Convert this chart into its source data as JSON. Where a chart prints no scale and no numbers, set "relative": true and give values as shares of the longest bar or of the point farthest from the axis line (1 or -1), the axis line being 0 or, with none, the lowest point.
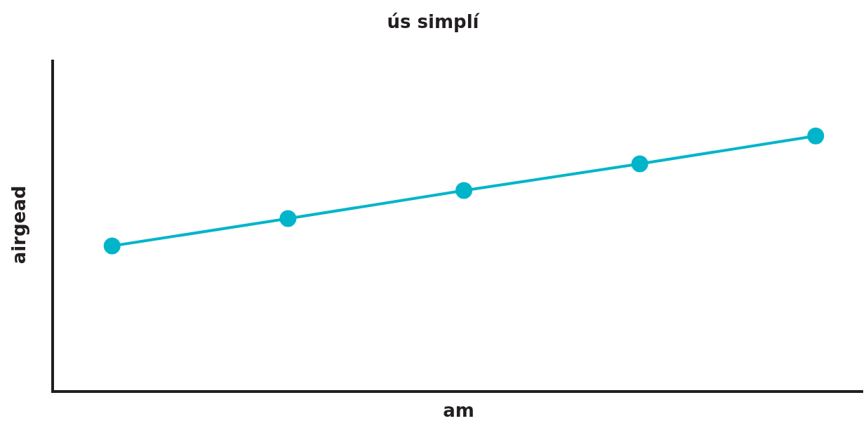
{
  "chart_data": {
    "type": "line",
    "title": "ús simplí",
    "xlabel": "am",
    "ylabel": "airgead",
    "categories": [
      null,
      null,
      null,
      null,
      null
    ],
    "relative": true,
    "series": [
      {
        "color": "#00b5c9",
        "values": [
          0.567,
          0.675,
          0.785,
          0.89,
          1.0
        ]
      }
    ],
    "marker": "circle",
    "line_style": "solid"
  }
}
